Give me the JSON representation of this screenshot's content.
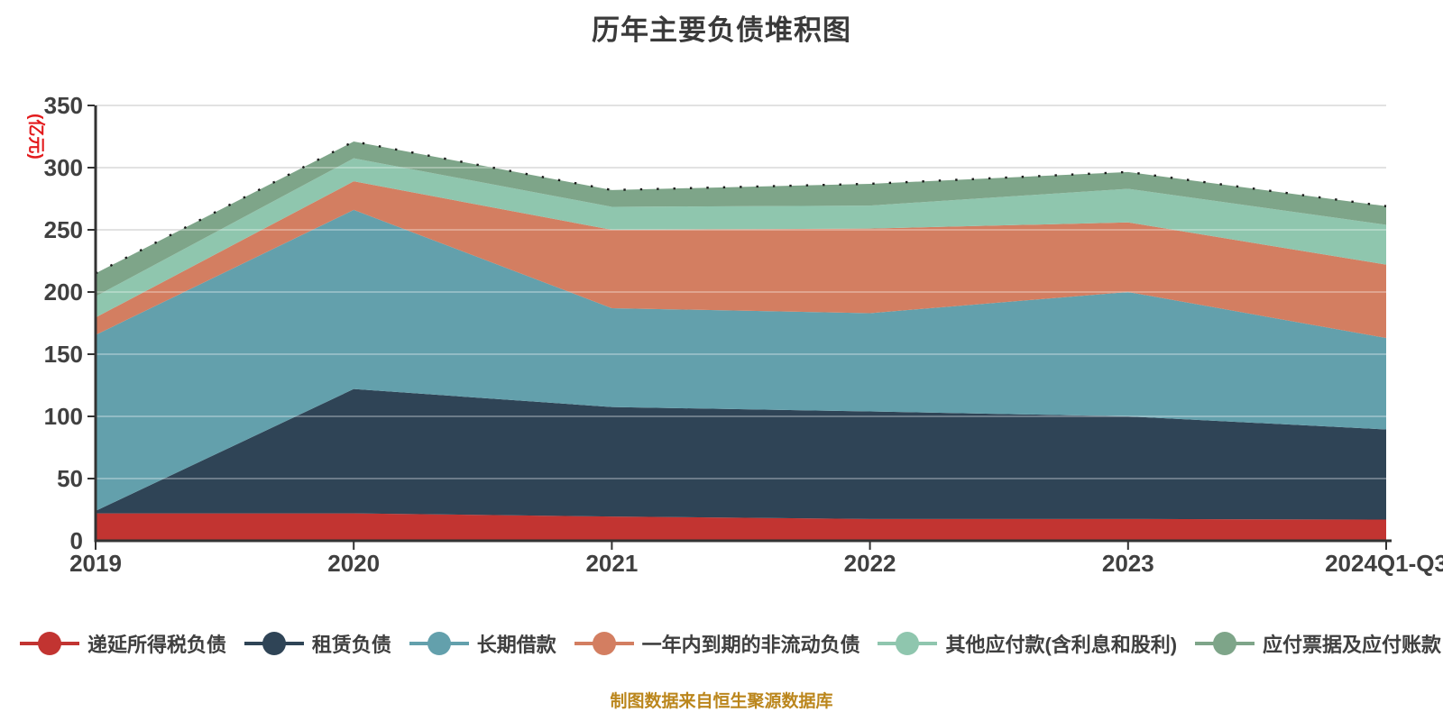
{
  "title": "历年主要负债堆积图",
  "footer_note": "制图数据来自恒生聚源数据库",
  "y_axis": {
    "name": "(亿元)",
    "name_color": "#e31a1c",
    "min": 0,
    "max": 350,
    "interval": 50,
    "tick_labels": [
      "0",
      "50",
      "100",
      "150",
      "200",
      "250",
      "300",
      "350"
    ]
  },
  "x_axis": {
    "categories": [
      "2019",
      "2020",
      "2021",
      "2022",
      "2023",
      "2024Q1-Q3"
    ]
  },
  "chart_data": {
    "type": "area",
    "stacked": true,
    "title": "历年主要负债堆积图",
    "xlabel": "",
    "ylabel": "(亿元)",
    "ylim": [
      0,
      350
    ],
    "grid": true,
    "legend_position": "bottom",
    "top_edge_line": {
      "style": "dotted",
      "color": "#1a1a1a"
    },
    "categories": [
      "2019",
      "2020",
      "2021",
      "2022",
      "2023",
      "2024Q1-Q3"
    ],
    "series": [
      {
        "name": "递延所得税负债",
        "color": "#c23431",
        "values": [
          22,
          22,
          19.5,
          17.5,
          17.5,
          17
        ]
      },
      {
        "name": "租赁负债",
        "color": "#2f4456",
        "values": [
          2,
          100,
          88,
          86.5,
          82.5,
          72.5
        ]
      },
      {
        "name": "长期借款",
        "color": "#63a0ac",
        "values": [
          141.5,
          144,
          79.5,
          79,
          100,
          73.5
        ]
      },
      {
        "name": "一年内到期的非流动负债",
        "color": "#d37e61",
        "values": [
          14,
          23,
          63,
          68,
          56,
          59
        ]
      },
      {
        "name": "其他应付款(含利息和股利)",
        "color": "#8fc6ae",
        "values": [
          17,
          18.5,
          18.5,
          18.5,
          27,
          32
        ]
      },
      {
        "name": "应付票据及应付账款",
        "color": "#7ea589",
        "values": [
          18.5,
          13.5,
          13.5,
          17.5,
          13.5,
          15
        ]
      }
    ]
  },
  "colors": {
    "background": "#ffffff",
    "gridline": "#d6d6d6",
    "axis": "#333333",
    "tick_label": "#404040",
    "title_text": "#3a3a3a",
    "legend_text": "#3f3f3f",
    "footer_text": "#bb861c"
  }
}
